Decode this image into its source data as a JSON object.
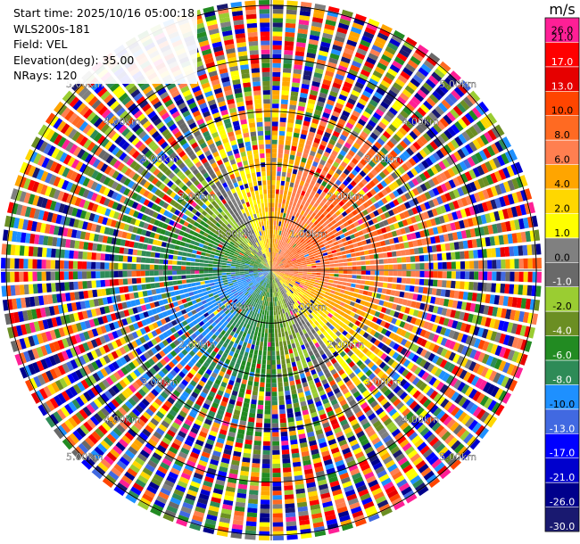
{
  "header": {
    "start_time": "Start time: 2025/10/16 05:00:18",
    "instrument": "WLS200s-181",
    "field": "Field: VEL",
    "elevation": "Elevation(deg): 35.00",
    "nrays": "NRays: 120"
  },
  "chart_data": {
    "type": "heatmap",
    "projection": "polar",
    "field": "VEL",
    "n_rays": 120,
    "range_rings": [
      "1.00km",
      "2.00km",
      "3.00km",
      "4.00km",
      "5.00km"
    ],
    "max_range_km": 5.1,
    "colorbar": {
      "unit": "m/s",
      "ticks": [
        "26.0",
        "21.0",
        "17.0",
        "13.0",
        "10.0",
        "8.0",
        "6.0",
        "4.0",
        "2.0",
        "1.0",
        "0.0",
        "-1.0",
        "-2.0",
        "-4.0",
        "-6.0",
        "-8.0",
        "-10.0",
        "-13.0",
        "-17.0",
        "-21.0",
        "-26.0",
        "-30.0"
      ],
      "colors": [
        "#ff1f96",
        "#ff0000",
        "#e60000",
        "#ff4500",
        "#ff6a22",
        "#ff7f50",
        "#ffa500",
        "#ffd700",
        "#ffff00",
        "#808080",
        "#696969",
        "#9acd32",
        "#6b8e23",
        "#228b22",
        "#2e8b57",
        "#1e90ff",
        "#4169e1",
        "#0000ff",
        "#0000cd",
        "#00008b",
        "#191970"
      ]
    }
  }
}
